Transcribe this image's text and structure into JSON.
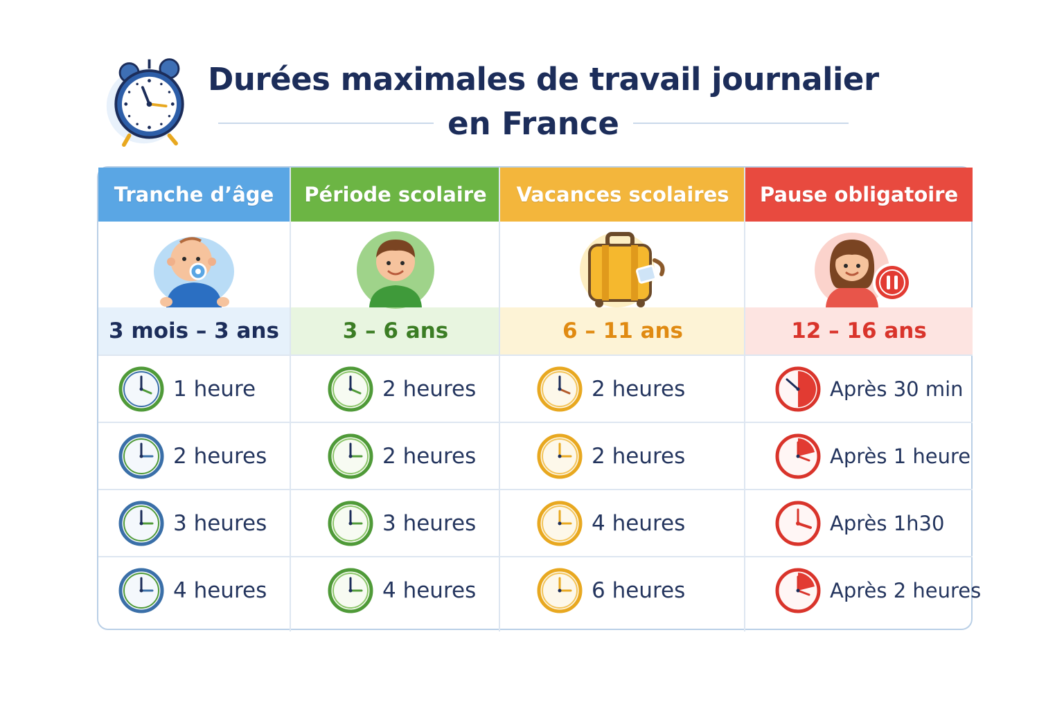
{
  "title": {
    "line1": "Durées maximales de travail journalier",
    "line2": "en France",
    "icon": "alarm-clock-icon"
  },
  "columns": [
    {
      "header": "Tranche d’âge",
      "header_color": "#5aa6e4",
      "accent": "#3a6fa8",
      "age_bg": "#e6f1fb",
      "age_color": "#1c2d5a",
      "avatar": "baby-icon",
      "age": "3 mois – 3 ans",
      "values": [
        "1 heure",
        "2 heures",
        "3 heures",
        "4 heures"
      ]
    },
    {
      "header": "Période scolaire",
      "header_color": "#6cb544",
      "accent": "#4e9a2e",
      "age_bg": "#e8f5e0",
      "age_color": "#3b7d24",
      "avatar": "boy-icon",
      "age": "3 – 6 ans",
      "values": [
        "2 heures",
        "2 heures",
        "3 heures",
        "4 heures"
      ]
    },
    {
      "header": "Vacances scolaires",
      "header_color": "#f3b63c",
      "accent": "#e8a820",
      "age_bg": "#fdf3d6",
      "age_color": "#e08a12",
      "avatar": "suitcase-icon",
      "age": "6 – 11 ans",
      "values": [
        "2 heures",
        "2 heures",
        "4 heures",
        "6 heures"
      ]
    },
    {
      "header": "Pause obligatoire",
      "header_color": "#e84a3f",
      "accent": "#d9342b",
      "age_bg": "#fde4e1",
      "age_color": "#d9342b",
      "avatar": "girl-pause-icon",
      "age": "12 – 16 ans",
      "values": [
        "Après 30 min",
        "Après 1 heure",
        "Après 1h30",
        "Après 2 heures"
      ]
    }
  ]
}
